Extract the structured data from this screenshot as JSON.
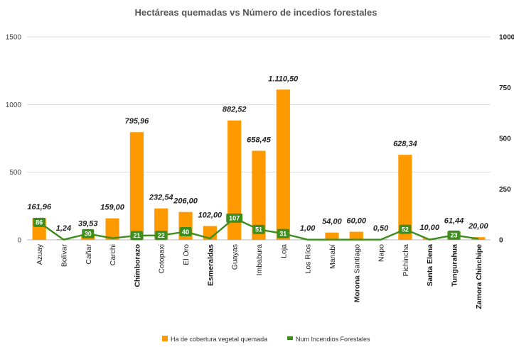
{
  "chart_data": {
    "type": "bar",
    "title": "Hectáreas quemadas vs Número de incedios forestales",
    "categories": [
      "Azuay",
      "Bolivar",
      "Cañar",
      "Carchi",
      "Chimborazo",
      "Cotopaxi",
      "El Oro",
      "Esmeraldas",
      "Guayas",
      "Imbabura",
      "Loja",
      "Los Ríos",
      "Manabí",
      "Morona Santiago",
      "Napo",
      "Pichincha",
      "Santa Elena",
      "Tungurahua",
      "Zamora Chinchipe"
    ],
    "bold_categories": [
      "Chimborazo",
      "Esmeraldas",
      "Morona",
      "Santa Elena",
      "Tungurahua",
      "Zamora Chinchipe"
    ],
    "series": [
      {
        "name": "Ha de cobertura vegetal quemada",
        "type": "bar",
        "axis": "left",
        "color": "#FF9900",
        "values": [
          161.96,
          1.24,
          39.53,
          159.0,
          795.96,
          232.54,
          206.0,
          102.0,
          882.52,
          658.45,
          1110.5,
          1.0,
          54.0,
          60.0,
          0.5,
          628.34,
          10.0,
          61.44,
          20.0
        ],
        "labels": [
          "161,96",
          "1,24",
          "39,53",
          "159,00",
          "795,96",
          "232,54",
          "206,00",
          "102,00",
          "882,52",
          "658,45",
          "1.110,50",
          "1,00",
          "54,00",
          "60,00",
          "0,50",
          "628,34",
          "10,00",
          "61,44",
          "20,00"
        ]
      },
      {
        "name": "Num Incendios Forestales",
        "type": "line",
        "axis": "right",
        "color": "#3E8E1F",
        "values": [
          86,
          1,
          30,
          8,
          21,
          22,
          40,
          7,
          107,
          51,
          31,
          1,
          1,
          1,
          1,
          52,
          1,
          23,
          5
        ],
        "labeled_points": [
          {
            "index": 0,
            "label": "86"
          },
          {
            "index": 2,
            "label": "30"
          },
          {
            "index": 4,
            "label": "21"
          },
          {
            "index": 5,
            "label": "22"
          },
          {
            "index": 6,
            "label": "40"
          },
          {
            "index": 8,
            "label": "107"
          },
          {
            "index": 9,
            "label": "51"
          },
          {
            "index": 10,
            "label": "31"
          },
          {
            "index": 15,
            "label": "52"
          },
          {
            "index": 17,
            "label": "23"
          }
        ]
      }
    ],
    "y_left": {
      "min": 0,
      "max": 1500,
      "ticks": [
        0,
        500,
        1000,
        1500
      ],
      "tick_labels": [
        "0",
        "500",
        "1000",
        "1500"
      ]
    },
    "y_right": {
      "min": 0,
      "max": 1000,
      "ticks": [
        0,
        250,
        500,
        750,
        1000
      ],
      "tick_labels": [
        "0",
        "250",
        "500",
        "750",
        "1000"
      ]
    },
    "grid": true,
    "legend_position": "bottom"
  }
}
